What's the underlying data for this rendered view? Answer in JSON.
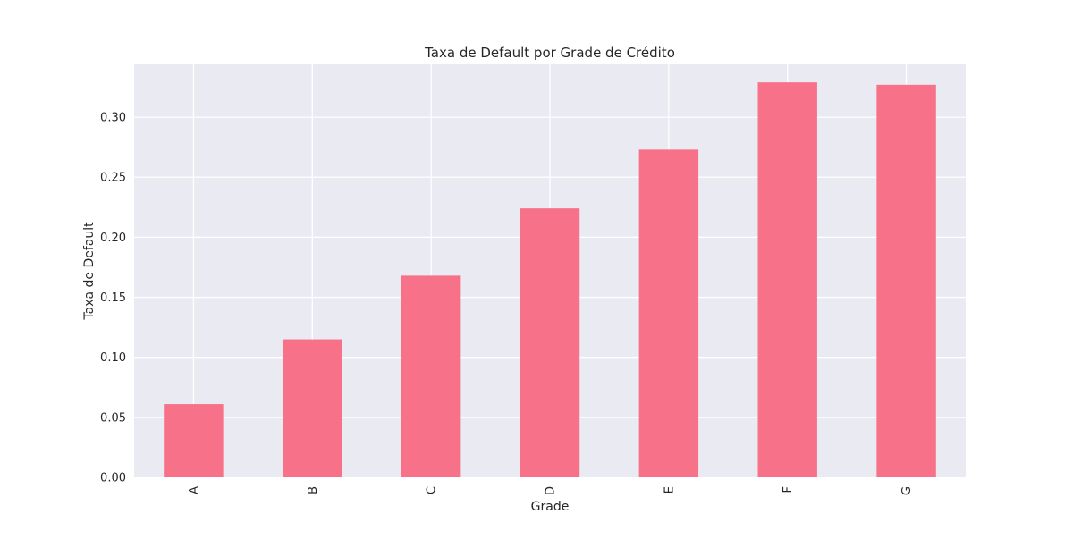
{
  "colors": {
    "bar": "#f77189",
    "plot_background": "#eaeaf2",
    "grid": "#ffffff",
    "text": "#262626"
  },
  "chart_data": {
    "type": "bar",
    "title": "Taxa de Default por Grade de Crédito",
    "xlabel": "Grade",
    "ylabel": "Taxa de Default",
    "categories": [
      "A",
      "B",
      "C",
      "D",
      "E",
      "F",
      "G"
    ],
    "values": [
      0.061,
      0.115,
      0.168,
      0.224,
      0.273,
      0.329,
      0.327
    ],
    "ylim": [
      0.0,
      0.344
    ],
    "yticks": [
      "0.00",
      "0.05",
      "0.10",
      "0.15",
      "0.20",
      "0.25",
      "0.30"
    ],
    "x_tick_rotation": "vertical",
    "grid": true,
    "legend": "none"
  }
}
